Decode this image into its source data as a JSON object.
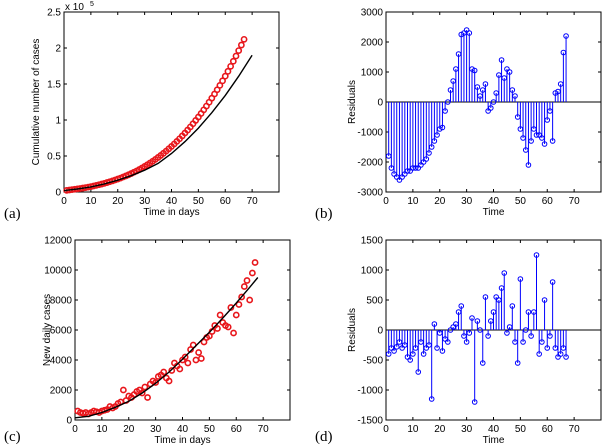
{
  "chart_data": [
    {
      "id": "a",
      "panel_label": "(a)",
      "type": "scatter",
      "series_color": "#e8161b",
      "fit_color": "#000000",
      "xlabel": "Time in days",
      "ylabel": "Cumulative number of cases",
      "xlim": [
        0,
        80
      ],
      "ylim": [
        0,
        2.5
      ],
      "y_multiplier": "x 10",
      "y_exponent": "5",
      "xticks": [
        "0",
        "10",
        "20",
        "30",
        "40",
        "50",
        "60",
        "70"
      ],
      "yticks": [
        "0",
        "0.5",
        "1",
        "1.5",
        "2",
        "2.5"
      ],
      "x": [
        1,
        2,
        3,
        4,
        5,
        6,
        7,
        8,
        9,
        10,
        11,
        12,
        13,
        14,
        15,
        16,
        17,
        18,
        19,
        20,
        21,
        22,
        23,
        24,
        25,
        26,
        27,
        28,
        29,
        30,
        31,
        32,
        33,
        34,
        35,
        36,
        37,
        38,
        39,
        40,
        41,
        42,
        43,
        44,
        45,
        46,
        47,
        48,
        49,
        50,
        51,
        52,
        53,
        54,
        55,
        56,
        57,
        58,
        59,
        60,
        61,
        62,
        63,
        64,
        65,
        66,
        67
      ],
      "y": [
        0.023,
        0.028,
        0.033,
        0.038,
        0.043,
        0.049,
        0.055,
        0.061,
        0.068,
        0.075,
        0.083,
        0.092,
        0.101,
        0.11,
        0.12,
        0.131,
        0.142,
        0.154,
        0.167,
        0.18,
        0.193,
        0.208,
        0.223,
        0.239,
        0.256,
        0.274,
        0.292,
        0.312,
        0.333,
        0.355,
        0.378,
        0.402,
        0.427,
        0.453,
        0.48,
        0.508,
        0.537,
        0.568,
        0.6,
        0.633,
        0.667,
        0.703,
        0.74,
        0.779,
        0.819,
        0.86,
        0.903,
        0.948,
        0.994,
        1.041,
        1.09,
        1.141,
        1.193,
        1.247,
        1.303,
        1.361,
        1.42,
        1.481,
        1.544,
        1.609,
        1.676,
        1.745,
        1.816,
        1.889,
        1.964,
        2.041,
        2.12
      ],
      "fit_x": [
        0,
        5,
        10,
        15,
        20,
        25,
        30,
        35,
        40,
        45,
        50,
        55,
        60,
        65,
        70
      ],
      "fit_y": [
        0.02,
        0.041,
        0.071,
        0.112,
        0.164,
        0.227,
        0.303,
        0.397,
        0.535,
        0.698,
        0.887,
        1.101,
        1.342,
        1.608,
        1.898
      ]
    },
    {
      "id": "b",
      "panel_label": "(b)",
      "type": "stem",
      "series_color": "#0000ff",
      "xlabel": "Time",
      "ylabel": "Residuals",
      "xlim": [
        0,
        80
      ],
      "ylim": [
        -3000,
        3000
      ],
      "xticks": [
        "0",
        "10",
        "20",
        "30",
        "40",
        "50",
        "60",
        "70"
      ],
      "yticks": [
        "-3000",
        "-2000",
        "-1000",
        "0",
        "1000",
        "2000",
        "3000"
      ],
      "x": [
        1,
        2,
        3,
        4,
        5,
        6,
        7,
        8,
        9,
        10,
        11,
        12,
        13,
        14,
        15,
        16,
        17,
        18,
        19,
        20,
        21,
        22,
        23,
        24,
        25,
        26,
        27,
        28,
        29,
        30,
        31,
        32,
        33,
        34,
        35,
        36,
        37,
        38,
        39,
        40,
        41,
        42,
        43,
        44,
        45,
        46,
        47,
        48,
        49,
        50,
        51,
        52,
        53,
        54,
        55,
        56,
        57,
        58,
        59,
        60,
        61,
        62,
        63,
        64,
        65,
        66,
        67
      ],
      "y": [
        -1800,
        -2200,
        -2400,
        -2500,
        -2600,
        -2500,
        -2400,
        -2300,
        -2300,
        -2200,
        -2200,
        -2200,
        -2100,
        -2000,
        -1900,
        -1700,
        -1500,
        -1300,
        -1100,
        -900,
        -850,
        -300,
        0,
        400,
        700,
        1100,
        1600,
        2250,
        2300,
        2400,
        2300,
        1100,
        1050,
        500,
        200,
        400,
        600,
        -300,
        -200,
        0,
        300,
        900,
        1400,
        800,
        1100,
        1000,
        400,
        200,
        -500,
        -900,
        -1200,
        -1600,
        -2100,
        -1300,
        -900,
        -1100,
        -1100,
        -1200,
        -1400,
        -600,
        -300,
        -1300,
        300,
        350,
        600,
        1650,
        2200
      ]
    },
    {
      "id": "c",
      "panel_label": "(c)",
      "type": "scatter",
      "series_color": "#e8161b",
      "fit_color": "#000000",
      "xlabel": "Time in days",
      "ylabel": "New daily cases",
      "xlim": [
        0,
        80
      ],
      "ylim": [
        0,
        12000
      ],
      "xticks": [
        "0",
        "10",
        "20",
        "30",
        "40",
        "50",
        "60",
        "70"
      ],
      "yticks": [
        "0",
        "2000",
        "4000",
        "6000",
        "8000",
        "10000",
        "12000"
      ],
      "x": [
        1,
        2,
        3,
        4,
        5,
        6,
        7,
        8,
        9,
        10,
        11,
        12,
        13,
        14,
        15,
        16,
        17,
        18,
        19,
        20,
        21,
        22,
        23,
        24,
        25,
        26,
        27,
        28,
        29,
        30,
        31,
        32,
        33,
        34,
        35,
        36,
        37,
        38,
        39,
        40,
        41,
        42,
        43,
        44,
        45,
        46,
        47,
        48,
        49,
        50,
        51,
        52,
        53,
        54,
        55,
        56,
        57,
        58,
        59,
        60,
        61,
        62,
        63,
        64,
        65,
        66,
        67
      ],
      "y": [
        600,
        500,
        450,
        500,
        400,
        500,
        600,
        550,
        500,
        600,
        650,
        700,
        900,
        800,
        900,
        1100,
        1200,
        2000,
        1300,
        1600,
        1500,
        1700,
        1900,
        2000,
        1800,
        2200,
        1500,
        2400,
        2600,
        2500,
        2900,
        3000,
        3200,
        2800,
        2600,
        3300,
        3800,
        3600,
        3400,
        4000,
        4200,
        3800,
        4700,
        5000,
        4000,
        4500,
        4100,
        5200,
        5500,
        5600,
        5900,
        6300,
        6100,
        7000,
        6500,
        6300,
        6200,
        7500,
        5800,
        7000,
        7700,
        8200,
        8900,
        9300,
        8000,
        9800,
        10500
      ],
      "fit_x": [
        0,
        5,
        10,
        15,
        20,
        25,
        30,
        35,
        40,
        45,
        50,
        55,
        60,
        65,
        68
      ],
      "fit_y": [
        150,
        250,
        500,
        850,
        1250,
        1800,
        2450,
        3200,
        4050,
        4950,
        5850,
        6800,
        7800,
        8850,
        9500
      ]
    },
    {
      "id": "d",
      "panel_label": "(d)",
      "type": "stem",
      "series_color": "#0000ff",
      "xlabel": "Time",
      "ylabel": "Residuals",
      "xlim": [
        0,
        80
      ],
      "ylim": [
        -1500,
        1500
      ],
      "xticks": [
        "0",
        "10",
        "20",
        "30",
        "40",
        "50",
        "60",
        "70"
      ],
      "yticks": [
        "-1500",
        "-1000",
        "-500",
        "0",
        "500",
        "1000",
        "1500"
      ],
      "x": [
        1,
        2,
        3,
        4,
        5,
        6,
        7,
        8,
        9,
        10,
        11,
        12,
        13,
        14,
        15,
        16,
        17,
        18,
        19,
        20,
        21,
        22,
        23,
        24,
        25,
        26,
        27,
        28,
        29,
        30,
        31,
        32,
        33,
        34,
        35,
        36,
        37,
        38,
        39,
        40,
        41,
        42,
        43,
        44,
        45,
        46,
        47,
        48,
        49,
        50,
        51,
        52,
        53,
        54,
        55,
        56,
        57,
        58,
        59,
        60,
        61,
        62,
        63,
        64,
        65,
        66,
        67
      ],
      "y": [
        -400,
        -300,
        -350,
        -280,
        -200,
        -300,
        -250,
        -450,
        -500,
        -400,
        -300,
        -700,
        -200,
        -400,
        -300,
        -250,
        -1150,
        100,
        -300,
        -50,
        -350,
        -150,
        -200,
        0,
        50,
        100,
        300,
        400,
        -100,
        -200,
        -50,
        200,
        -1200,
        150,
        0,
        -550,
        550,
        -100,
        150,
        300,
        550,
        500,
        700,
        950,
        -50,
        50,
        400,
        -200,
        -550,
        850,
        -200,
        0,
        300,
        -100,
        300,
        1250,
        -400,
        -200,
        500,
        -300,
        -100,
        800,
        -300,
        -450,
        -400,
        -300,
        -450
      ]
    }
  ]
}
